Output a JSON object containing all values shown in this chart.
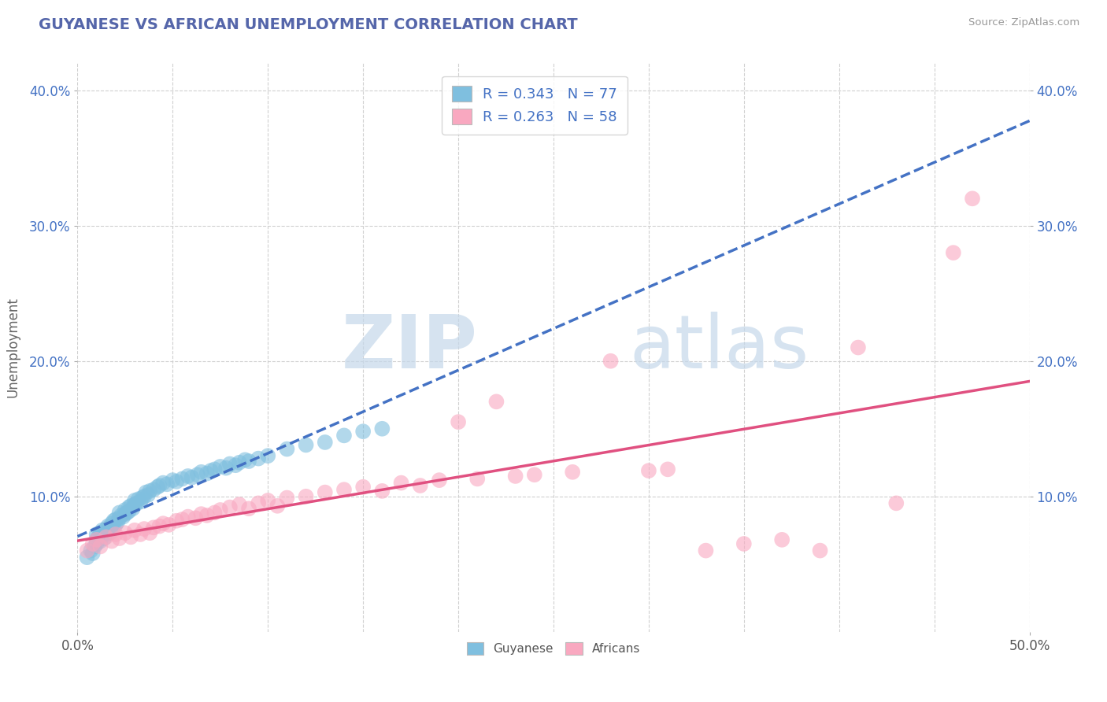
{
  "title": "GUYANESE VS AFRICAN UNEMPLOYMENT CORRELATION CHART",
  "source": "Source: ZipAtlas.com",
  "ylabel": "Unemployment",
  "xlim": [
    0.0,
    0.5
  ],
  "ylim": [
    0.0,
    0.42
  ],
  "guyanese_color": "#7fbfdf",
  "africans_color": "#f9a8c0",
  "trendline_guyanese_color": "#4472C4",
  "trendline_africans_color": "#e05080",
  "R_guyanese": 0.343,
  "N_guyanese": 77,
  "R_africans": 0.263,
  "N_africans": 58,
  "watermark_zip": "ZIP",
  "watermark_atlas": "atlas",
  "background_color": "#ffffff",
  "grid_color": "#d0d0d0",
  "guyanese_x": [
    0.005,
    0.007,
    0.008,
    0.009,
    0.01,
    0.01,
    0.01,
    0.011,
    0.012,
    0.012,
    0.013,
    0.013,
    0.014,
    0.015,
    0.015,
    0.016,
    0.016,
    0.017,
    0.017,
    0.018,
    0.018,
    0.019,
    0.019,
    0.02,
    0.02,
    0.021,
    0.022,
    0.022,
    0.023,
    0.024,
    0.025,
    0.025,
    0.026,
    0.027,
    0.027,
    0.028,
    0.029,
    0.03,
    0.03,
    0.031,
    0.032,
    0.033,
    0.034,
    0.035,
    0.036,
    0.037,
    0.038,
    0.04,
    0.042,
    0.043,
    0.045,
    0.047,
    0.05,
    0.052,
    0.055,
    0.058,
    0.06,
    0.063,
    0.065,
    0.068,
    0.07,
    0.072,
    0.075,
    0.078,
    0.08,
    0.083,
    0.085,
    0.088,
    0.09,
    0.095,
    0.1,
    0.11,
    0.12,
    0.13,
    0.14,
    0.15,
    0.16
  ],
  "guyanese_y": [
    0.055,
    0.06,
    0.058,
    0.063,
    0.065,
    0.068,
    0.072,
    0.07,
    0.067,
    0.073,
    0.071,
    0.075,
    0.069,
    0.072,
    0.076,
    0.074,
    0.078,
    0.073,
    0.077,
    0.075,
    0.08,
    0.078,
    0.082,
    0.079,
    0.083,
    0.081,
    0.084,
    0.088,
    0.086,
    0.085,
    0.087,
    0.09,
    0.088,
    0.092,
    0.089,
    0.093,
    0.091,
    0.094,
    0.097,
    0.095,
    0.098,
    0.096,
    0.099,
    0.1,
    0.103,
    0.101,
    0.104,
    0.105,
    0.107,
    0.108,
    0.11,
    0.109,
    0.112,
    0.111,
    0.113,
    0.115,
    0.114,
    0.116,
    0.118,
    0.117,
    0.119,
    0.12,
    0.122,
    0.121,
    0.124,
    0.123,
    0.125,
    0.127,
    0.126,
    0.128,
    0.13,
    0.135,
    0.138,
    0.14,
    0.145,
    0.148,
    0.15
  ],
  "africans_x": [
    0.005,
    0.008,
    0.01,
    0.012,
    0.015,
    0.018,
    0.02,
    0.022,
    0.025,
    0.028,
    0.03,
    0.033,
    0.035,
    0.038,
    0.04,
    0.043,
    0.045,
    0.048,
    0.052,
    0.055,
    0.058,
    0.062,
    0.065,
    0.068,
    0.072,
    0.075,
    0.08,
    0.085,
    0.09,
    0.095,
    0.1,
    0.105,
    0.11,
    0.12,
    0.13,
    0.14,
    0.15,
    0.16,
    0.17,
    0.18,
    0.19,
    0.2,
    0.21,
    0.22,
    0.23,
    0.24,
    0.26,
    0.28,
    0.3,
    0.31,
    0.33,
    0.35,
    0.37,
    0.39,
    0.41,
    0.43,
    0.46,
    0.47
  ],
  "africans_y": [
    0.06,
    0.065,
    0.068,
    0.063,
    0.07,
    0.067,
    0.072,
    0.069,
    0.073,
    0.07,
    0.075,
    0.072,
    0.076,
    0.073,
    0.077,
    0.078,
    0.08,
    0.079,
    0.082,
    0.083,
    0.085,
    0.084,
    0.087,
    0.086,
    0.088,
    0.09,
    0.092,
    0.094,
    0.091,
    0.095,
    0.097,
    0.093,
    0.099,
    0.1,
    0.103,
    0.105,
    0.107,
    0.104,
    0.11,
    0.108,
    0.112,
    0.155,
    0.113,
    0.17,
    0.115,
    0.116,
    0.118,
    0.2,
    0.119,
    0.12,
    0.06,
    0.065,
    0.068,
    0.06,
    0.21,
    0.095,
    0.28,
    0.32
  ]
}
